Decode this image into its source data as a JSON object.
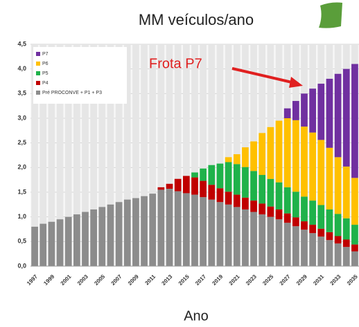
{
  "chart_data": {
    "type": "stacked_bar",
    "title": "MM veículos/ano",
    "x_label": "Ano",
    "annotation": "Frota P7",
    "categories": [
      "1997",
      null,
      "1999",
      null,
      "2001",
      null,
      "2003",
      null,
      "2005",
      null,
      "2007",
      null,
      "2009",
      null,
      "2011",
      null,
      "2013",
      null,
      "2015",
      null,
      "2017",
      null,
      "2019",
      null,
      "2021",
      null,
      "2023",
      null,
      "2025",
      null,
      "2027",
      null,
      "2029",
      null,
      "2031",
      null,
      "2033",
      null,
      "2035"
    ],
    "series": [
      {
        "name": "Pré PROCONVE + P1 + P3",
        "color": "#8c8c8c",
        "values": [
          0.8,
          0.86,
          0.9,
          0.95,
          1.0,
          1.05,
          1.1,
          1.15,
          1.2,
          1.25,
          1.3,
          1.35,
          1.38,
          1.42,
          1.47,
          1.55,
          1.57,
          1.52,
          1.48,
          1.45,
          1.4,
          1.35,
          1.3,
          1.25,
          1.2,
          1.15,
          1.1,
          1.05,
          1.0,
          0.95,
          0.88,
          0.81,
          0.74,
          0.67,
          0.6,
          0.53,
          0.46,
          0.39,
          0.3
        ]
      },
      {
        "name": "P4",
        "color": "#c00000",
        "values": [
          null,
          null,
          null,
          null,
          null,
          null,
          null,
          null,
          null,
          null,
          null,
          null,
          null,
          null,
          null,
          0.05,
          0.1,
          0.25,
          0.35,
          0.35,
          0.33,
          0.3,
          0.28,
          0.26,
          0.25,
          0.24,
          0.23,
          0.22,
          0.21,
          0.2,
          0.19,
          0.18,
          0.17,
          0.17,
          0.16,
          0.16,
          0.15,
          0.15,
          0.14
        ]
      },
      {
        "name": "P5",
        "color": "#1fb24a",
        "values": [
          null,
          null,
          null,
          null,
          null,
          null,
          null,
          null,
          null,
          null,
          null,
          null,
          null,
          null,
          null,
          null,
          null,
          null,
          null,
          0.1,
          0.25,
          0.4,
          0.5,
          0.6,
          0.62,
          0.62,
          0.6,
          0.58,
          0.56,
          0.55,
          0.53,
          0.52,
          0.5,
          0.49,
          0.48,
          0.46,
          0.45,
          0.43,
          0.4
        ]
      },
      {
        "name": "P6",
        "color": "#ffc000",
        "values": [
          null,
          null,
          null,
          null,
          null,
          null,
          null,
          null,
          null,
          null,
          null,
          null,
          null,
          null,
          null,
          null,
          null,
          null,
          null,
          null,
          null,
          null,
          null,
          0.1,
          0.2,
          0.4,
          0.6,
          0.85,
          1.05,
          1.25,
          1.4,
          1.45,
          1.42,
          1.38,
          1.32,
          1.25,
          1.15,
          1.05,
          0.95
        ]
      },
      {
        "name": "P7",
        "color": "#7030a0",
        "values": [
          null,
          null,
          null,
          null,
          null,
          null,
          null,
          null,
          null,
          null,
          null,
          null,
          null,
          null,
          null,
          null,
          null,
          null,
          null,
          null,
          null,
          null,
          null,
          null,
          null,
          null,
          null,
          null,
          null,
          null,
          0.2,
          0.39,
          0.67,
          0.89,
          1.14,
          1.4,
          1.69,
          1.98,
          2.31
        ]
      }
    ],
    "ylim": [
      0,
      4.5
    ],
    "yticks": [
      {
        "value": 0,
        "label": "0,0"
      },
      {
        "value": 0.5,
        "label": "0,5"
      },
      {
        "value": 1,
        "label": "1,0"
      },
      {
        "value": 1.5,
        "label": "1,5"
      },
      {
        "value": 2,
        "label": "2,0"
      },
      {
        "value": 2.5,
        "label": "2,5"
      },
      {
        "value": 3,
        "label": "3,0"
      },
      {
        "value": 3.5,
        "label": "3,5"
      },
      {
        "value": 4,
        "label": "4,0"
      },
      {
        "value": 4.5,
        "label": "4,5"
      }
    ],
    "grid": true,
    "legend": "top-left"
  }
}
